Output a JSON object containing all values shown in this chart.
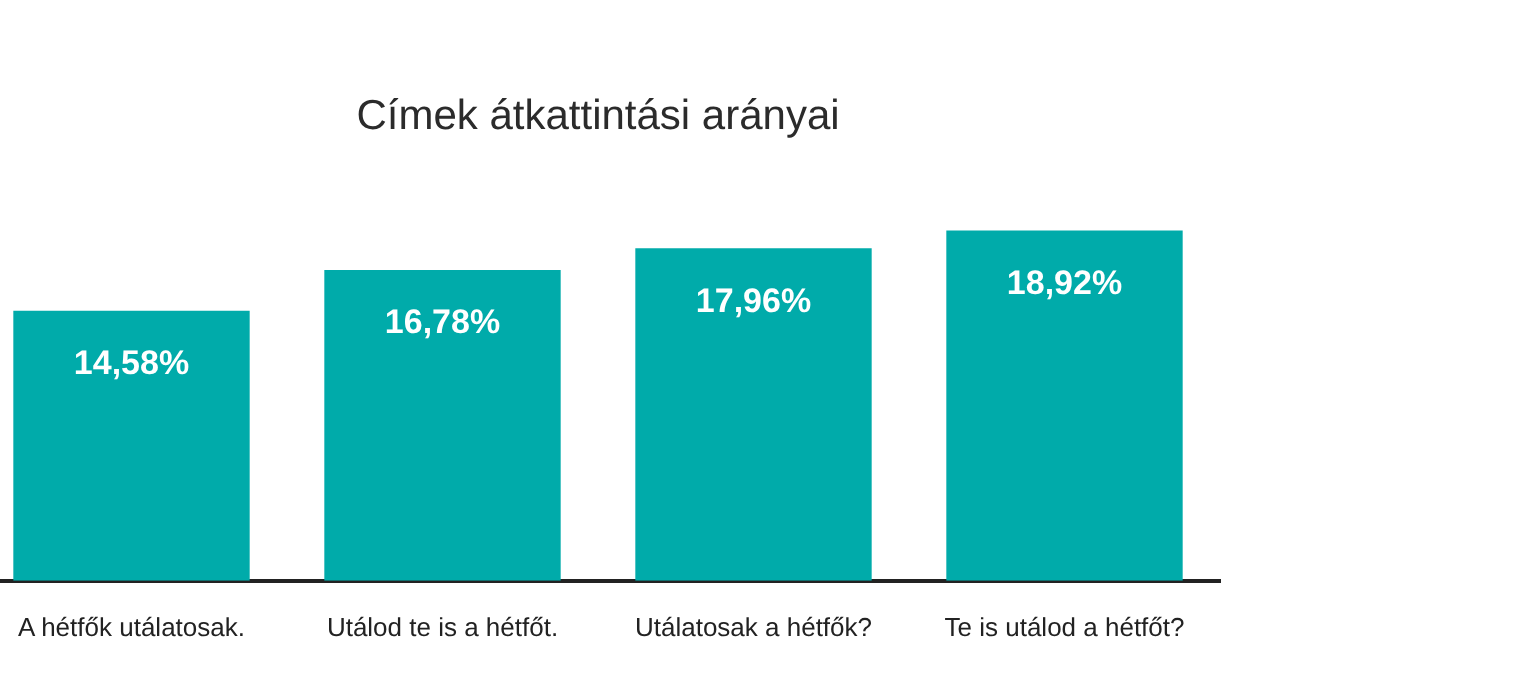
{
  "chart_data": {
    "type": "bar",
    "title": "Címek átkattintási arányai",
    "categories": [
      "A hétfők utálatosak.",
      "Utálod te is a hétfőt.",
      "Utálatosak a hétfők?",
      "Te is utálod a hétfőt?"
    ],
    "values": [
      14.58,
      16.78,
      17.96,
      18.92
    ],
    "value_labels": [
      "14,58%",
      "16,78%",
      "17,96%",
      "18,92%"
    ],
    "color": "#00abaa",
    "grid": false,
    "legend": false
  }
}
